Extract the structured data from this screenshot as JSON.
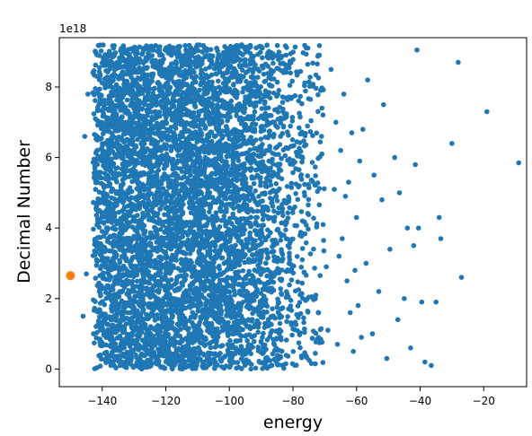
{
  "chart_data": {
    "type": "scatter",
    "title": "",
    "xlabel": "energy",
    "ylabel": "Decimal Number",
    "y_offset_text": "1e18",
    "xlim": [
      -153.5,
      -6.5
    ],
    "ylim": [
      -0.5,
      9.4
    ],
    "y_scale_factor": 1e+18,
    "grid": false,
    "legend": "none",
    "x_ticks": [
      -140,
      -120,
      -100,
      -80,
      -60,
      -40,
      -20
    ],
    "x_tick_labels": [
      "−140",
      "−120",
      "−100",
      "−80",
      "−60",
      "−40",
      "−20"
    ],
    "y_ticks": [
      0,
      2,
      4,
      6,
      8
    ],
    "y_tick_labels": [
      "0",
      "2",
      "4",
      "6",
      "8"
    ],
    "series": [
      {
        "color": "#1f77b4",
        "marker_size": "small",
        "dense_region": {
          "x_range": [
            -143,
            -70
          ],
          "y_range": [
            0,
            9.2
          ],
          "approx_point_count": 6000,
          "density_profile": [
            {
              "x": -143,
              "rel": 0.35
            },
            {
              "x": -140,
              "rel": 0.9
            },
            {
              "x": -135,
              "rel": 1.0
            },
            {
              "x": -110,
              "rel": 1.0
            },
            {
              "x": -100,
              "rel": 0.95
            },
            {
              "x": -95,
              "rel": 0.8
            },
            {
              "x": -90,
              "rel": 0.6
            },
            {
              "x": -85,
              "rel": 0.45
            },
            {
              "x": -80,
              "rel": 0.3
            },
            {
              "x": -75,
              "rel": 0.18
            },
            {
              "x": -70,
              "rel": 0.1
            }
          ]
        },
        "points": [
          [
            -145.5,
            6.6
          ],
          [
            -146.0,
            1.5
          ],
          [
            -144.5,
            7.8
          ],
          [
            -145.0,
            2.7
          ],
          [
            -68.0,
            8.5
          ],
          [
            -66.5,
            7.0
          ],
          [
            -65.0,
            6.2
          ],
          [
            -64.5,
            3.7
          ],
          [
            -63.0,
            2.5
          ],
          [
            -62.5,
            5.3
          ],
          [
            -61.0,
            0.5
          ],
          [
            -60.0,
            4.3
          ],
          [
            -59.5,
            1.8
          ],
          [
            -58.0,
            6.8
          ],
          [
            -57.0,
            3.0
          ],
          [
            -56.5,
            8.2
          ],
          [
            -55.0,
            1.0
          ],
          [
            -54.5,
            5.5
          ],
          [
            -53.0,
            2.2
          ],
          [
            -52.0,
            4.8
          ],
          [
            -51.5,
            7.5
          ],
          [
            -50.5,
            0.3
          ],
          [
            -49.5,
            3.4
          ],
          [
            -48.0,
            6.0
          ],
          [
            -47.0,
            1.4
          ],
          [
            -46.5,
            5.0
          ],
          [
            -45.0,
            2.0
          ],
          [
            -44.0,
            4.0
          ],
          [
            -43.0,
            0.6
          ],
          [
            -42.0,
            3.5
          ],
          [
            -41.5,
            5.8
          ],
          [
            -41.0,
            9.05
          ],
          [
            -40.5,
            4.0
          ],
          [
            -39.5,
            1.9
          ],
          [
            -38.5,
            0.2
          ],
          [
            -36.5,
            0.1
          ],
          [
            -35.0,
            1.9
          ],
          [
            -34.0,
            4.3
          ],
          [
            -33.5,
            3.7
          ],
          [
            -30.0,
            6.4
          ],
          [
            -28.0,
            8.7
          ],
          [
            -27.0,
            2.6
          ],
          [
            -19.0,
            7.3
          ],
          [
            -9.0,
            5.85
          ],
          [
            -72.0,
            8.9
          ],
          [
            -71.0,
            6.6
          ],
          [
            -70.5,
            4.1
          ],
          [
            -69.5,
            2.9
          ],
          [
            -69.0,
            1.1
          ],
          [
            -67.0,
            5.1
          ],
          [
            -66.0,
            0.7
          ],
          [
            -65.5,
            3.2
          ],
          [
            -64.0,
            7.8
          ],
          [
            -63.5,
            4.9
          ],
          [
            -62.0,
            1.6
          ],
          [
            -61.5,
            6.7
          ],
          [
            -60.5,
            2.8
          ],
          [
            -59.0,
            5.9
          ],
          [
            -58.5,
            0.9
          ]
        ]
      },
      {
        "color": "#ff7f0e",
        "marker_size": "large",
        "points": [
          [
            -150.0,
            2.65
          ]
        ]
      }
    ]
  }
}
